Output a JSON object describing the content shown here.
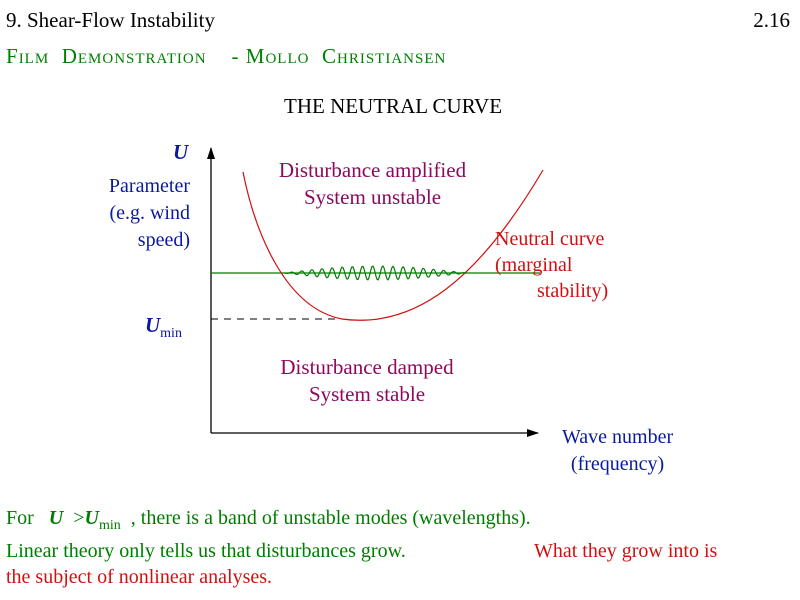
{
  "header": {
    "section_title": "9. Shear-Flow Instability",
    "page_number": "2.16"
  },
  "subtitle": {
    "f1": "F",
    "r1": "ILM",
    "f2": "D",
    "r2": "EMONSTRATION",
    "sep": "- ",
    "f3": "M",
    "r3": "OLLO",
    "f4": "C",
    "r4": "HRISTIANSEN"
  },
  "diagram": {
    "title": "THE NEUTRAL CURVE",
    "y_axis_symbol": "U",
    "y_axis_label_lines": [
      "Parameter",
      "(e.g. wind",
      "speed)"
    ],
    "umin_symbol": "U",
    "umin_subscript": "min",
    "region_unstable_lines": [
      "Disturbance amplified",
      "System unstable"
    ],
    "region_stable_lines": [
      "Disturbance damped",
      "System stable"
    ],
    "neutral_curve_lines": [
      "Neutral curve",
      "(marginal",
      "stability)"
    ],
    "x_axis_label_lines": [
      "Wave number",
      "(frequency)"
    ],
    "colors": {
      "axis": "#000000",
      "neutral_curve": "#d01010",
      "disturbance": "#007d00",
      "labels_blue": "#0a1a9c",
      "labels_purple": "#8a0a5c"
    }
  },
  "notes": {
    "line1_prefix": "For",
    "line1_u": "U",
    "line1_op": ">",
    "line1_umin": "U",
    "line1_umin_sub": "min",
    "line1_suffix": ", there is a band of unstable modes (wavelengths).",
    "line2": "Linear theory only tells us that disturbances grow.",
    "line3": "What they grow into is",
    "line4": "the subject of nonlinear analyses."
  }
}
